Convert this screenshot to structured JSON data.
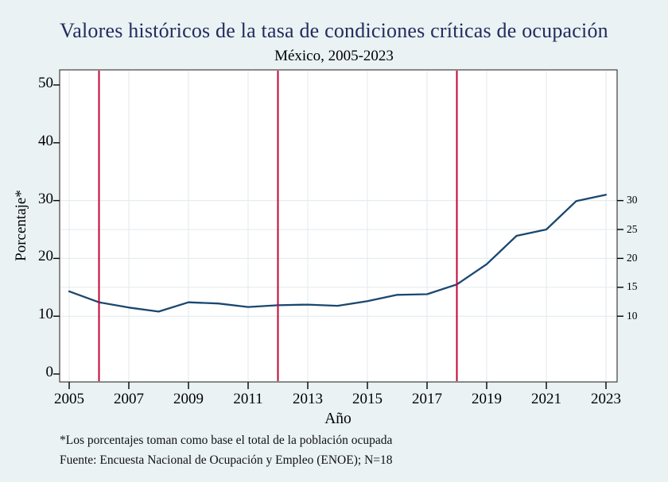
{
  "window": {
    "background_color": "#eaf2f3",
    "plot_background_color": "#ffffff"
  },
  "chart": {
    "title": "Valores históricos de la tasa de condiciones críticas de ocupación",
    "subtitle": "México, 2005-2023",
    "xlabel": "Año",
    "ylabel": "Porcentaje*",
    "footnote_note": "*Los porcentajes toman como base el total de la población ocupada",
    "footnote_source": "Fuente: Encuesta Nacional de Ocupación y Empleo (ENOE); N=18",
    "title_color": "#212c5f"
  },
  "chart_data": {
    "type": "line",
    "title": "Valores históricos de la tasa de condiciones críticas de ocupación",
    "subtitle": "México, 2005-2023",
    "xlabel": "Año",
    "ylabel": "Porcentaje*",
    "x": [
      2005,
      2006,
      2007,
      2008,
      2009,
      2010,
      2011,
      2012,
      2013,
      2014,
      2015,
      2016,
      2017,
      2018,
      2019,
      2020,
      2021,
      2022,
      2023
    ],
    "series": [
      {
        "name": "Tasa de condiciones críticas de ocupación (%)",
        "color": "#1a476f",
        "values": [
          14.3,
          12.4,
          11.5,
          10.8,
          12.4,
          12.2,
          11.6,
          11.9,
          12.0,
          11.8,
          12.6,
          13.7,
          13.8,
          15.5,
          19.0,
          23.9,
          25.0,
          29.9,
          31.0
        ]
      }
    ],
    "xticks": [
      2005,
      2007,
      2009,
      2011,
      2013,
      2015,
      2017,
      2019,
      2021,
      2023
    ],
    "yticks_left": [
      0,
      10,
      20,
      30,
      40,
      50
    ],
    "yticks_right": [
      10,
      15,
      20,
      25,
      30
    ],
    "gridlines_y": [
      10,
      15,
      20,
      25,
      30
    ],
    "vlines": [
      2006,
      2012,
      2018
    ],
    "vline_color": "#c10534",
    "grid": true,
    "legend": "none",
    "x_range": [
      2004.7,
      2023.4
    ],
    "y_range": [
      -1.4,
      52.6
    ],
    "grid_color": "#e0eaec",
    "frame_color": "#404040"
  }
}
